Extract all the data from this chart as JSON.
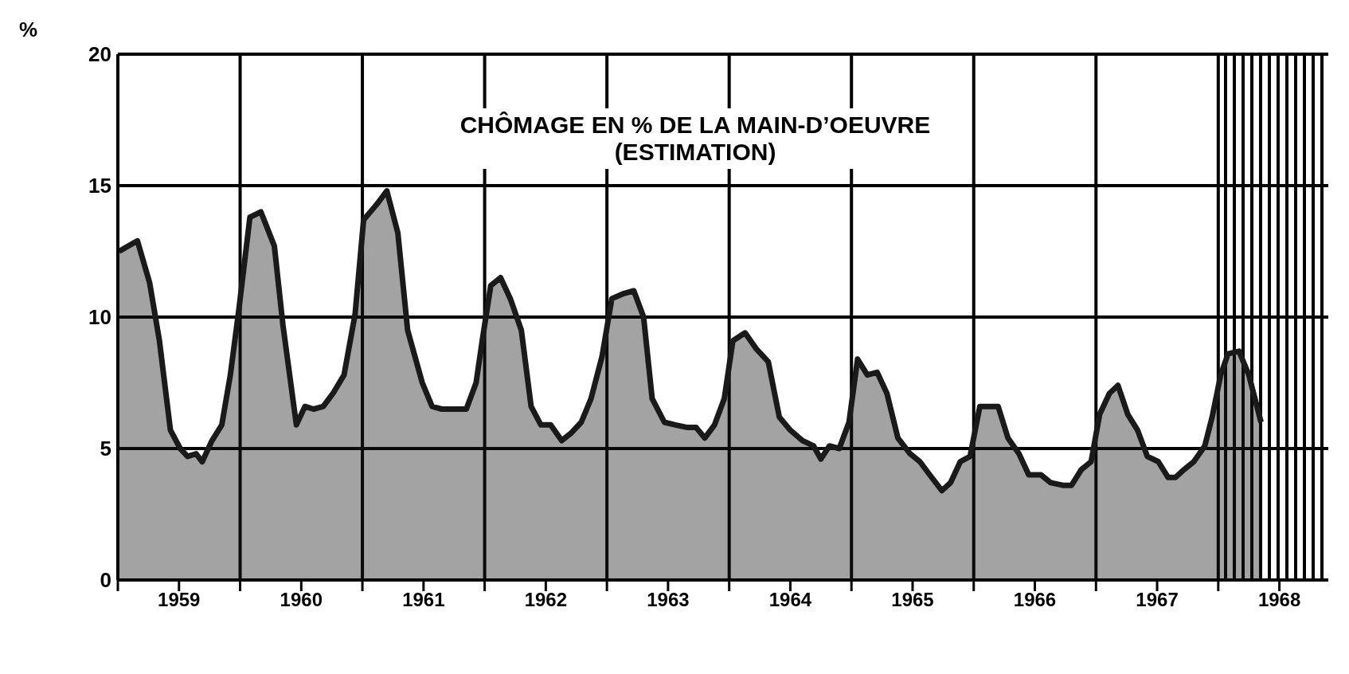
{
  "chart_data": {
    "type": "area",
    "title": "CHÔMAGE EN % DE LA MAIN-D’OEUVRE",
    "subtitle": "(ESTIMATION)",
    "ylabel": "%",
    "x": [
      1959.01,
      1959.16,
      1959.26,
      1959.34,
      1959.43,
      1959.51,
      1959.57,
      1959.64,
      1959.69,
      1959.77,
      1959.85,
      1959.92,
      1959.99,
      1960.08,
      1960.17,
      1960.28,
      1960.35,
      1960.46,
      1960.53,
      1960.6,
      1960.68,
      1960.76,
      1960.85,
      1960.94,
      1961.01,
      1961.12,
      1961.2,
      1961.29,
      1961.37,
      1961.49,
      1961.57,
      1961.65,
      1961.75,
      1961.85,
      1961.93,
      1961.98,
      1962.05,
      1962.13,
      1962.21,
      1962.3,
      1962.38,
      1962.46,
      1962.54,
      1962.63,
      1962.71,
      1962.79,
      1962.87,
      1962.96,
      1963.04,
      1963.14,
      1963.22,
      1963.3,
      1963.37,
      1963.47,
      1963.56,
      1963.66,
      1963.73,
      1963.8,
      1963.88,
      1963.96,
      1964.03,
      1964.13,
      1964.22,
      1964.32,
      1964.41,
      1964.5,
      1964.6,
      1964.69,
      1964.75,
      1964.82,
      1964.9,
      1964.98,
      1965.05,
      1965.13,
      1965.21,
      1965.29,
      1965.38,
      1965.48,
      1965.56,
      1965.64,
      1965.74,
      1965.81,
      1965.89,
      1965.97,
      1966.05,
      1966.14,
      1966.2,
      1966.28,
      1966.37,
      1966.45,
      1966.55,
      1966.63,
      1966.73,
      1966.8,
      1966.88,
      1966.96,
      1967.03,
      1967.11,
      1967.18,
      1967.26,
      1967.34,
      1967.42,
      1967.51,
      1967.59,
      1967.65,
      1967.72,
      1967.8,
      1967.89,
      1967.95,
      1968.02,
      1968.08,
      1968.17,
      1968.25,
      1968.35
    ],
    "series": [
      {
        "color": "#1a1a1a",
        "values": [
          12.5,
          12.9,
          11.3,
          9.1,
          5.7,
          5.0,
          4.7,
          4.8,
          4.5,
          5.3,
          5.9,
          7.8,
          10.3,
          13.8,
          14.0,
          12.7,
          9.7,
          5.9,
          6.6,
          6.5,
          6.6,
          7.1,
          7.8,
          10.1,
          13.7,
          14.3,
          14.8,
          13.2,
          9.5,
          7.5,
          6.6,
          6.5,
          6.5,
          6.5,
          7.5,
          9.1,
          11.2,
          11.5,
          10.7,
          9.5,
          6.6,
          5.9,
          5.9,
          5.3,
          5.6,
          6.0,
          6.9,
          8.5,
          10.7,
          10.9,
          11.0,
          10.0,
          6.9,
          6.0,
          5.9,
          5.8,
          5.8,
          5.4,
          5.9,
          6.9,
          9.1,
          9.4,
          8.8,
          8.3,
          6.2,
          5.7,
          5.3,
          5.1,
          4.6,
          5.1,
          5.0,
          6.0,
          8.4,
          7.8,
          7.9,
          7.1,
          5.4,
          4.8,
          4.5,
          4.0,
          3.4,
          3.7,
          4.5,
          4.7,
          6.6,
          6.6,
          6.6,
          5.4,
          4.8,
          4.0,
          4.0,
          3.7,
          3.6,
          3.6,
          4.2,
          4.5,
          6.3,
          7.1,
          7.4,
          6.3,
          5.7,
          4.7,
          4.5,
          3.9,
          3.9,
          4.2,
          4.5,
          5.1,
          6.2,
          7.8,
          8.6,
          8.7,
          7.8,
          6.0
        ]
      }
    ],
    "xlim": [
      1959,
      1968.9
    ],
    "xticks": [
      {
        "value": 1959,
        "label": null
      },
      {
        "value": 1959.5,
        "label": "1959"
      },
      {
        "value": 1960,
        "label": null
      },
      {
        "value": 1960.5,
        "label": "1960"
      },
      {
        "value": 1961,
        "label": null
      },
      {
        "value": 1961.5,
        "label": "1961"
      },
      {
        "value": 1962,
        "label": null
      },
      {
        "value": 1962.5,
        "label": "1962"
      },
      {
        "value": 1963,
        "label": null
      },
      {
        "value": 1963.5,
        "label": "1963"
      },
      {
        "value": 1964,
        "label": null
      },
      {
        "value": 1964.5,
        "label": "1964"
      },
      {
        "value": 1965,
        "label": null
      },
      {
        "value": 1965.5,
        "label": "1965"
      },
      {
        "value": 1966,
        "label": null
      },
      {
        "value": 1966.5,
        "label": "1966"
      },
      {
        "value": 1967,
        "label": null
      },
      {
        "value": 1967.5,
        "label": "1967"
      },
      {
        "value": 1968,
        "label": null
      },
      {
        "value": 1968.5,
        "label": "1968"
      }
    ],
    "ylim": [
      0,
      20
    ],
    "yticks": [
      0,
      5,
      10,
      15,
      20
    ],
    "grid": true,
    "bands": [
      {
        "axis": "x",
        "from": 1968,
        "to": 1968.9,
        "color": "#000000"
      }
    ]
  }
}
